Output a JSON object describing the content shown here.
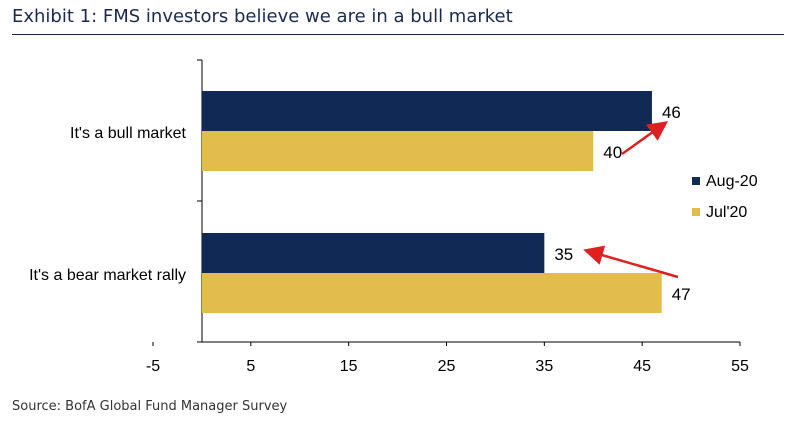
{
  "title": "Exhibit 1: FMS investors believe we are in a bull market",
  "source": "Source: BofA Global Fund Manager Survey",
  "chart_data": {
    "type": "bar",
    "orientation": "horizontal",
    "categories": [
      "It's a bull market",
      "It's a bear market rally"
    ],
    "series": [
      {
        "name": "Aug-20",
        "values": [
          46,
          35
        ],
        "color": "#112a55"
      },
      {
        "name": "Jul'20",
        "values": [
          40,
          47
        ],
        "color": "#e2bd4d"
      }
    ],
    "xlim": [
      -5,
      55
    ],
    "xticks": [
      "-5",
      "5",
      "15",
      "25",
      "35",
      "45",
      "55"
    ],
    "data_labels": true,
    "legend_position": "right",
    "grid": false,
    "annotation_arrow_color": "#e02020"
  }
}
